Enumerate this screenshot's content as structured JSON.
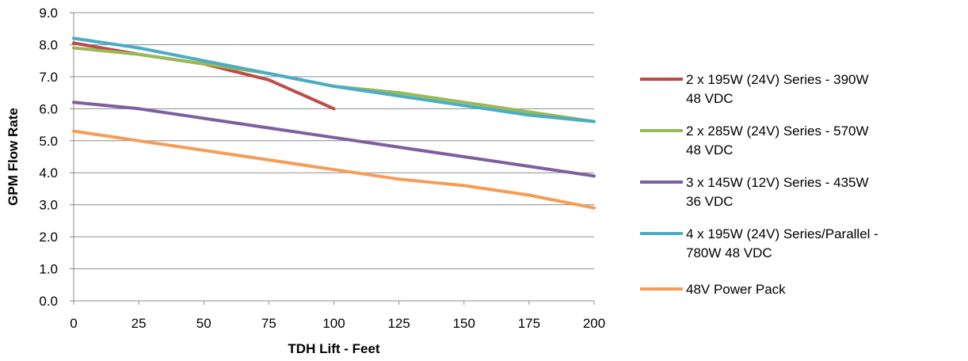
{
  "chart_data": {
    "type": "line",
    "title": "",
    "xlabel": "TDH Lift - Feet",
    "ylabel": "GPM Flow Rate",
    "xlim": [
      0,
      200
    ],
    "ylim": [
      0,
      9
    ],
    "x_ticks": [
      0,
      25,
      50,
      75,
      100,
      125,
      150,
      175,
      200
    ],
    "x_tick_labels": [
      "0",
      "25",
      "50",
      "75",
      "100",
      "125",
      "150",
      "175",
      "200"
    ],
    "y_ticks": [
      0,
      1,
      2,
      3,
      4,
      5,
      6,
      7,
      8,
      9
    ],
    "y_tick_labels": [
      "0.0",
      "1.0",
      "2.0",
      "3.0",
      "4.0",
      "5.0",
      "6.0",
      "7.0",
      "8.0",
      "9.0"
    ],
    "grid": "horizontal",
    "legend_position": "right",
    "series": [
      {
        "name": "2 x 195W (24V) Series - 390W 48 VDC",
        "legend_lines": [
          "2 x 195W (24V) Series - 390W",
          "48 VDC"
        ],
        "color": "#be4b48",
        "x": [
          0,
          25,
          50,
          75,
          100
        ],
        "y": [
          8.05,
          7.7,
          7.4,
          6.9,
          6.0
        ]
      },
      {
        "name": "2 x 285W (24V) Series - 570W 48 VDC",
        "legend_lines": [
          "2 x 285W (24V) Series - 570W",
          "48 VDC"
        ],
        "color": "#98b954",
        "x": [
          0,
          25,
          50,
          75,
          100,
          125,
          150,
          175,
          200
        ],
        "y": [
          7.9,
          7.7,
          7.4,
          7.1,
          6.7,
          6.5,
          6.2,
          5.9,
          5.6
        ]
      },
      {
        "name": "3 x 145W (12V) Series - 435W 36 VDC",
        "legend_lines": [
          "3 x 145W (12V) Series - 435W",
          "36 VDC"
        ],
        "color": "#7d5fa0",
        "x": [
          0,
          25,
          50,
          75,
          100,
          125,
          150,
          175,
          200
        ],
        "y": [
          6.2,
          6.0,
          5.7,
          5.4,
          5.1,
          4.8,
          4.5,
          4.2,
          3.9
        ]
      },
      {
        "name": "4 x 195W (24V) Series/Parallel - 780W 48 VDC",
        "legend_lines": [
          "4 x 195W (24V) Series/Parallel -",
          "780W 48 VDC"
        ],
        "color": "#4aacc5",
        "x": [
          0,
          25,
          50,
          75,
          100,
          125,
          150,
          175,
          200
        ],
        "y": [
          8.2,
          7.9,
          7.5,
          7.1,
          6.7,
          6.4,
          6.1,
          5.8,
          5.6
        ]
      },
      {
        "name": "48V Power Pack",
        "legend_lines": [
          "48V Power Pack"
        ],
        "color": "#f59d56",
        "x": [
          0,
          25,
          50,
          75,
          100,
          125,
          150,
          175,
          200
        ],
        "y": [
          5.3,
          5.0,
          4.7,
          4.4,
          4.1,
          3.8,
          3.6,
          3.3,
          2.9
        ]
      }
    ]
  }
}
